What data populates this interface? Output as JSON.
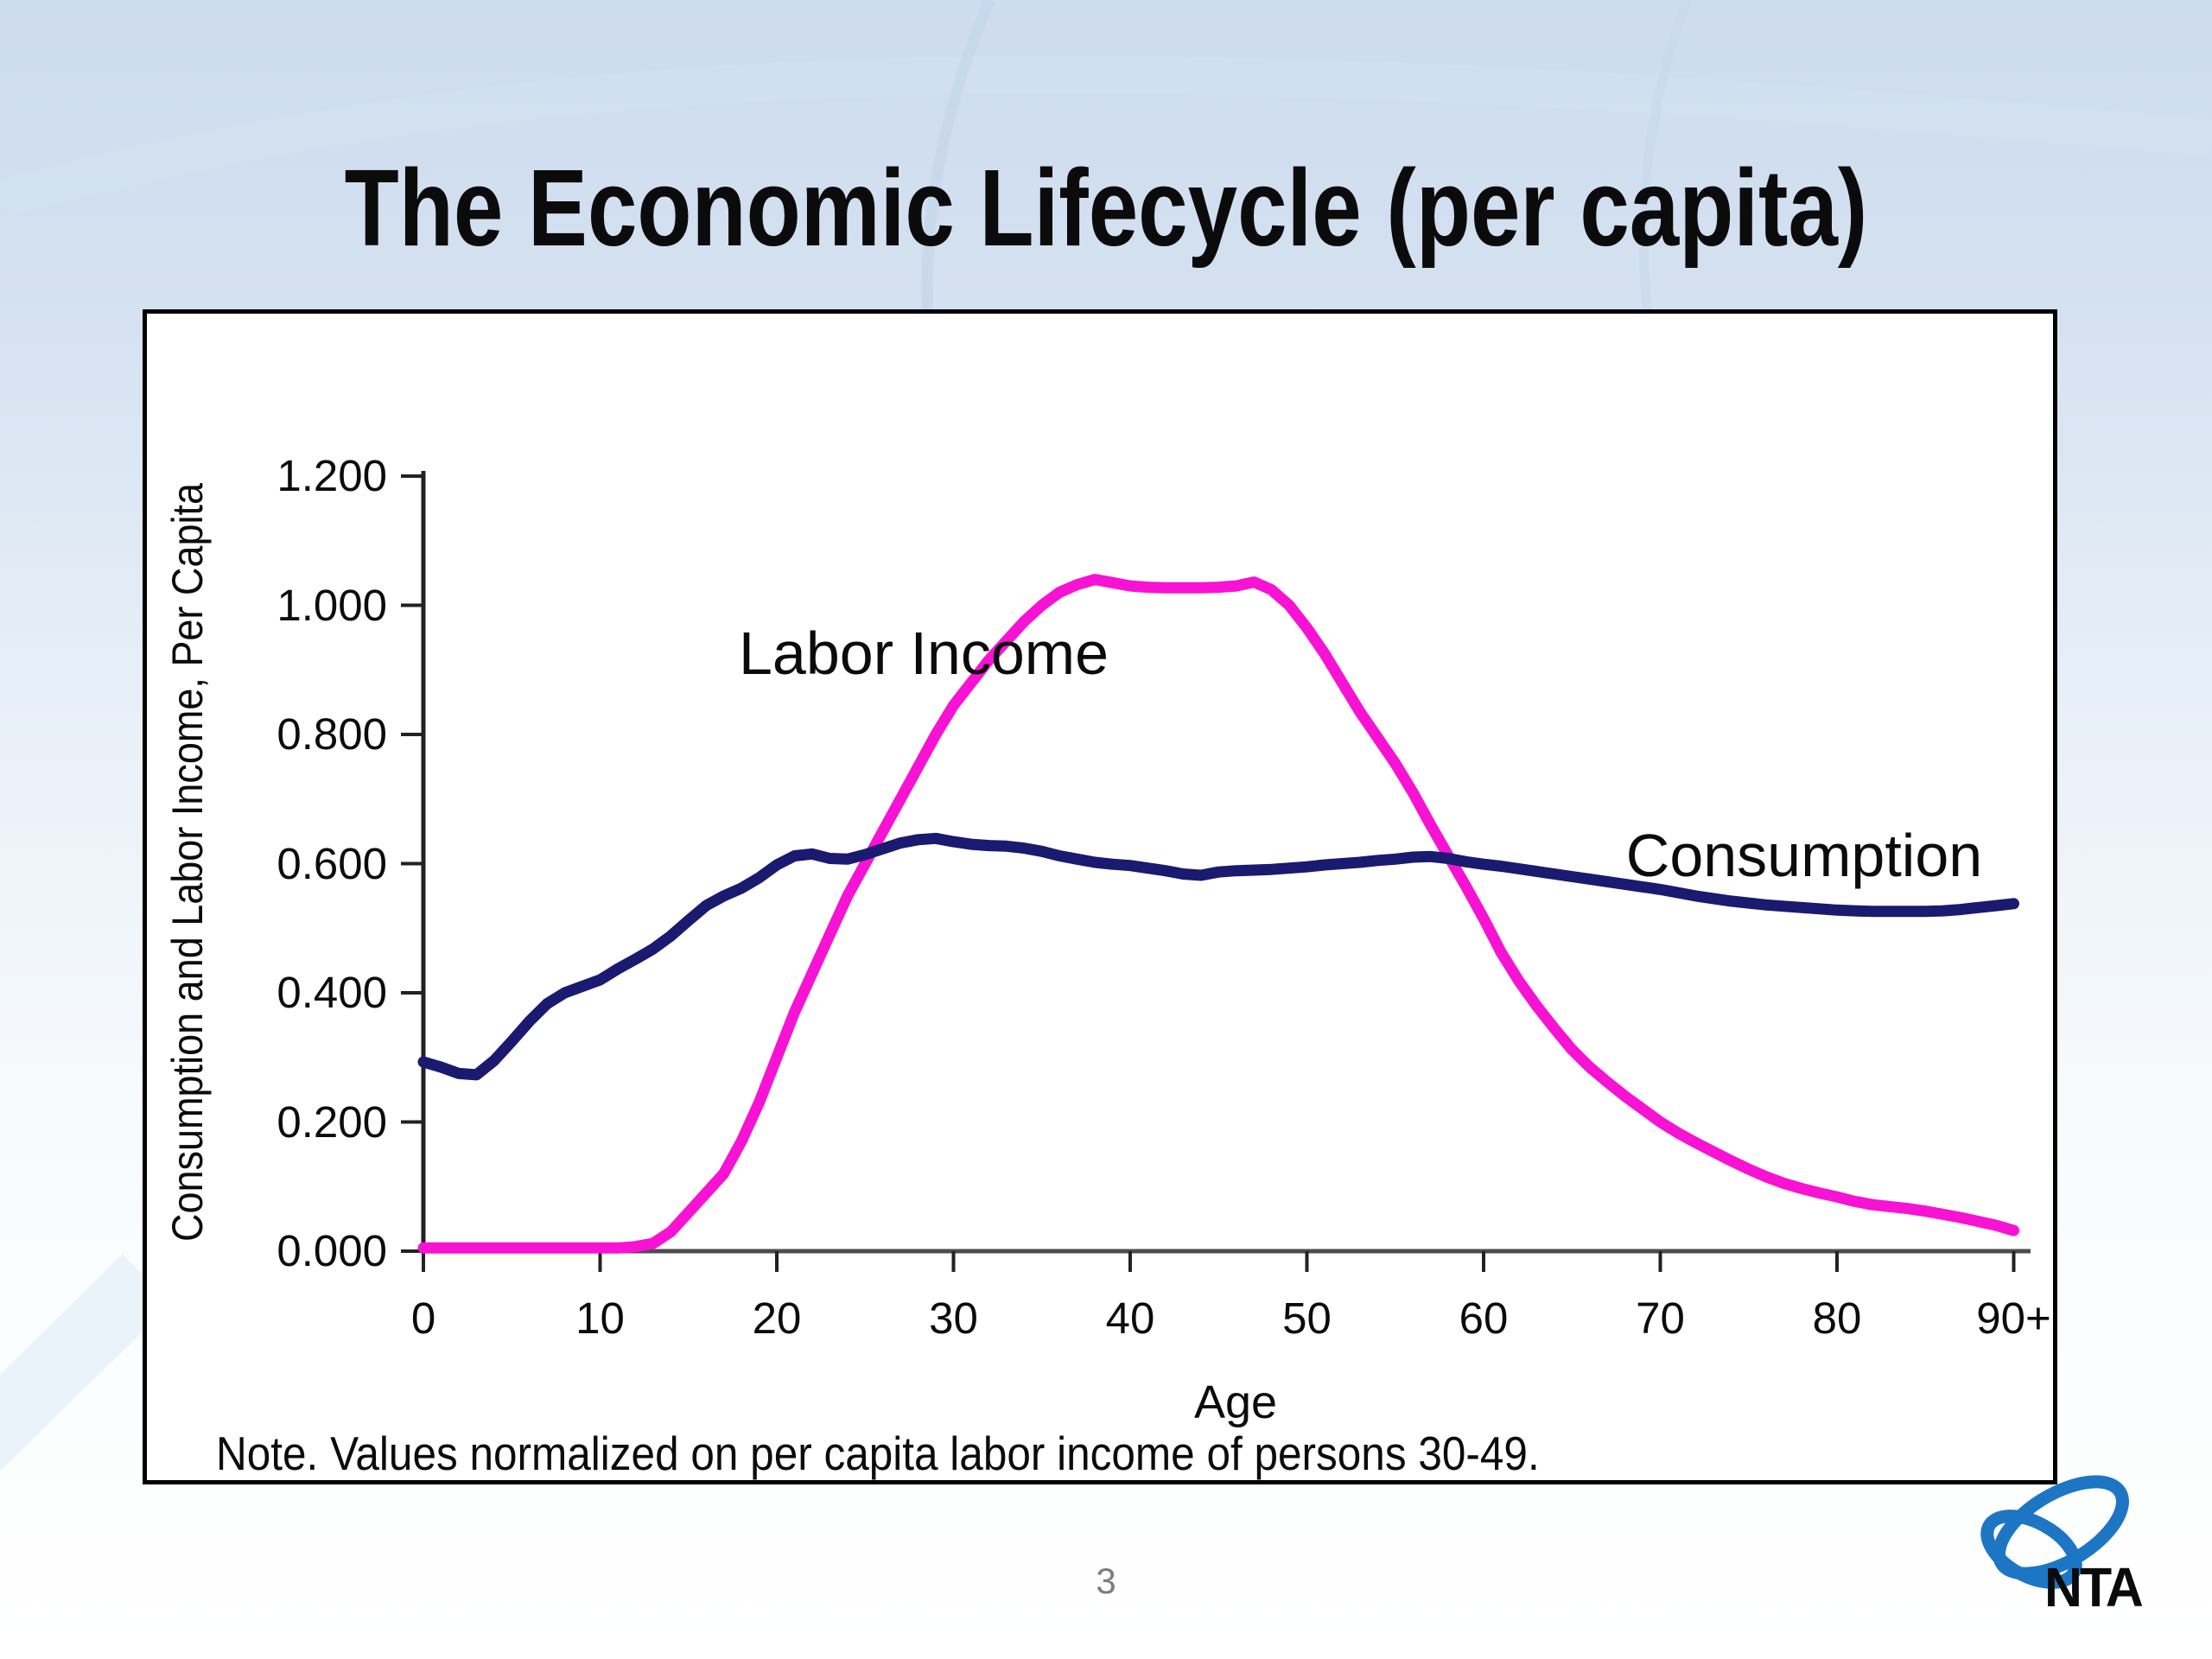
{
  "slide": {
    "title": "The Economic Lifecycle (per capita)",
    "page_number": "3",
    "logo_text": "NTA"
  },
  "colors": {
    "labor_income_line": "#f712d4",
    "consumption_line": "#1a1a70",
    "axis": "#2b2b2b",
    "x_axis_line": "#4d4d4d",
    "background_top": "#cddcee",
    "background_bottom": "#ffffff",
    "logo_blue": "#1d76c4",
    "page_number_gray": "#7d7d7d"
  },
  "chart_data": {
    "type": "line",
    "title": "",
    "xlabel": "Age",
    "ylabel": "Consumption and Labor Income, Per Capita",
    "note": "Note. Values normalized on per capita labor income of persons 30-49.",
    "grid": false,
    "legend_position": "inline-annotations",
    "xlim": [
      0,
      90
    ],
    "ylim": [
      0,
      1.2
    ],
    "x_ticks": [
      "0",
      "10",
      "20",
      "30",
      "40",
      "50",
      "60",
      "70",
      "80",
      "90+"
    ],
    "x_tick_ages": [
      0,
      10,
      20,
      30,
      40,
      50,
      60,
      70,
      80,
      90
    ],
    "y_ticks": [
      "0.000",
      "0.200",
      "0.400",
      "0.600",
      "0.800",
      "1.000",
      "1.200"
    ],
    "y_tick_values": [
      0,
      0.2,
      0.4,
      0.6,
      0.8,
      1.0,
      1.2
    ],
    "ages": [
      0,
      1,
      2,
      3,
      4,
      5,
      6,
      7,
      8,
      9,
      10,
      11,
      12,
      13,
      14,
      15,
      16,
      17,
      18,
      19,
      20,
      21,
      22,
      23,
      24,
      25,
      26,
      27,
      28,
      29,
      30,
      31,
      32,
      33,
      34,
      35,
      36,
      37,
      38,
      39,
      40,
      41,
      42,
      43,
      44,
      45,
      46,
      47,
      48,
      49,
      50,
      51,
      52,
      53,
      54,
      55,
      56,
      57,
      58,
      59,
      60,
      61,
      62,
      63,
      64,
      65,
      66,
      67,
      68,
      69,
      70,
      71,
      72,
      73,
      74,
      75,
      76,
      77,
      78,
      79,
      80,
      81,
      82,
      83,
      84,
      85,
      86,
      87,
      88,
      89,
      90
    ],
    "series": [
      {
        "name": "Labor Income",
        "color": "#f712d4",
        "values": [
          0.005,
          0.005,
          0.005,
          0.005,
          0.005,
          0.005,
          0.005,
          0.005,
          0.005,
          0.005,
          0.005,
          0.005,
          0.007,
          0.012,
          0.03,
          0.06,
          0.09,
          0.12,
          0.17,
          0.23,
          0.3,
          0.37,
          0.43,
          0.49,
          0.55,
          0.6,
          0.65,
          0.7,
          0.75,
          0.8,
          0.845,
          0.88,
          0.915,
          0.945,
          0.975,
          1.0,
          1.02,
          1.032,
          1.04,
          1.035,
          1.03,
          1.028,
          1.027,
          1.027,
          1.027,
          1.028,
          1.03,
          1.036,
          1.024,
          1.0,
          0.965,
          0.925,
          0.88,
          0.835,
          0.795,
          0.755,
          0.71,
          0.66,
          0.612,
          0.565,
          0.515,
          0.462,
          0.418,
          0.38,
          0.345,
          0.312,
          0.285,
          0.262,
          0.24,
          0.22,
          0.2,
          0.183,
          0.168,
          0.154,
          0.14,
          0.127,
          0.115,
          0.105,
          0.097,
          0.09,
          0.084,
          0.077,
          0.072,
          0.069,
          0.066,
          0.062,
          0.057,
          0.052,
          0.046,
          0.04,
          0.032
        ]
      },
      {
        "name": "Consumption",
        "color": "#1a1a70",
        "values": [
          0.293,
          0.285,
          0.275,
          0.273,
          0.295,
          0.325,
          0.356,
          0.383,
          0.4,
          0.41,
          0.42,
          0.437,
          0.452,
          0.468,
          0.488,
          0.512,
          0.535,
          0.55,
          0.562,
          0.578,
          0.598,
          0.612,
          0.615,
          0.608,
          0.607,
          0.614,
          0.623,
          0.632,
          0.637,
          0.639,
          0.634,
          0.63,
          0.628,
          0.627,
          0.624,
          0.619,
          0.612,
          0.607,
          0.602,
          0.599,
          0.597,
          0.593,
          0.589,
          0.584,
          0.582,
          0.587,
          0.589,
          0.59,
          0.591,
          0.593,
          0.595,
          0.598,
          0.6,
          0.602,
          0.605,
          0.607,
          0.61,
          0.611,
          0.608,
          0.603,
          0.599,
          0.596,
          0.592,
          0.588,
          0.584,
          0.58,
          0.576,
          0.572,
          0.568,
          0.564,
          0.56,
          0.555,
          0.55,
          0.546,
          0.542,
          0.539,
          0.536,
          0.534,
          0.532,
          0.53,
          0.528,
          0.527,
          0.526,
          0.526,
          0.526,
          0.526,
          0.527,
          0.529,
          0.532,
          0.535,
          0.538
        ]
      }
    ]
  }
}
